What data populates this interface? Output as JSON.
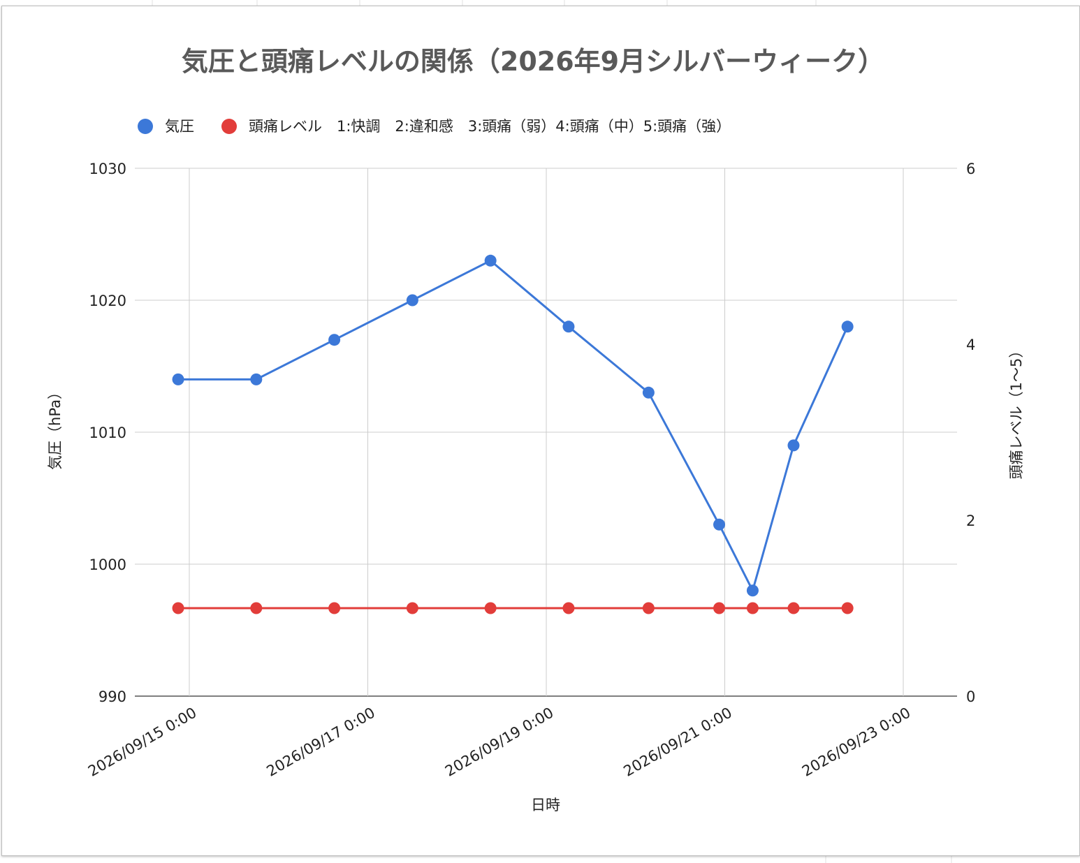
{
  "chart_data": {
    "type": "line",
    "title": "気圧と頭痛レベルの関係（2026年9月シルバーウィーク）",
    "xlabel": "日時",
    "ylabel_left": "気圧（hPa）",
    "ylabel_right": "頭痛レベル（1〜5）",
    "x_tick_labels": [
      "2026/09/15 0:00",
      "2026/09/17 0:00",
      "2026/09/19 0:00",
      "2026/09/21 0:00",
      "2026/09/23 0:00"
    ],
    "x": [
      "2026/09/14 21:00",
      "2026/09/15 18:00",
      "2026/09/16 15:00",
      "2026/09/17 12:00",
      "2026/09/18 09:00",
      "2026/09/19 06:00",
      "2026/09/20 03:30",
      "2026/09/20 22:30",
      "2026/09/21 07:30",
      "2026/09/21 18:30",
      "2026/09/22 09:00"
    ],
    "ylim_left": [
      990,
      1030
    ],
    "yticks_left": [
      "990",
      "1000",
      "1010",
      "1020",
      "1030"
    ],
    "ylim_right": [
      0,
      6
    ],
    "yticks_right": [
      "0",
      "2",
      "4",
      "6"
    ],
    "grid": true,
    "legend_position": "top",
    "series": [
      {
        "name": "気圧",
        "axis": "left",
        "color": "#3c78d8",
        "values": [
          1014,
          1014,
          1017,
          1020,
          1023,
          1018,
          1013,
          1003,
          998,
          1009,
          1018
        ]
      },
      {
        "name": "頭痛レベル　1:快調　2:違和感　3:頭痛（弱）4:頭痛（中）5:頭痛（強）",
        "axis": "right",
        "color": "#e23d3a",
        "values": [
          1,
          1,
          1,
          1,
          1,
          1,
          1,
          1,
          1,
          1,
          1
        ]
      }
    ]
  }
}
